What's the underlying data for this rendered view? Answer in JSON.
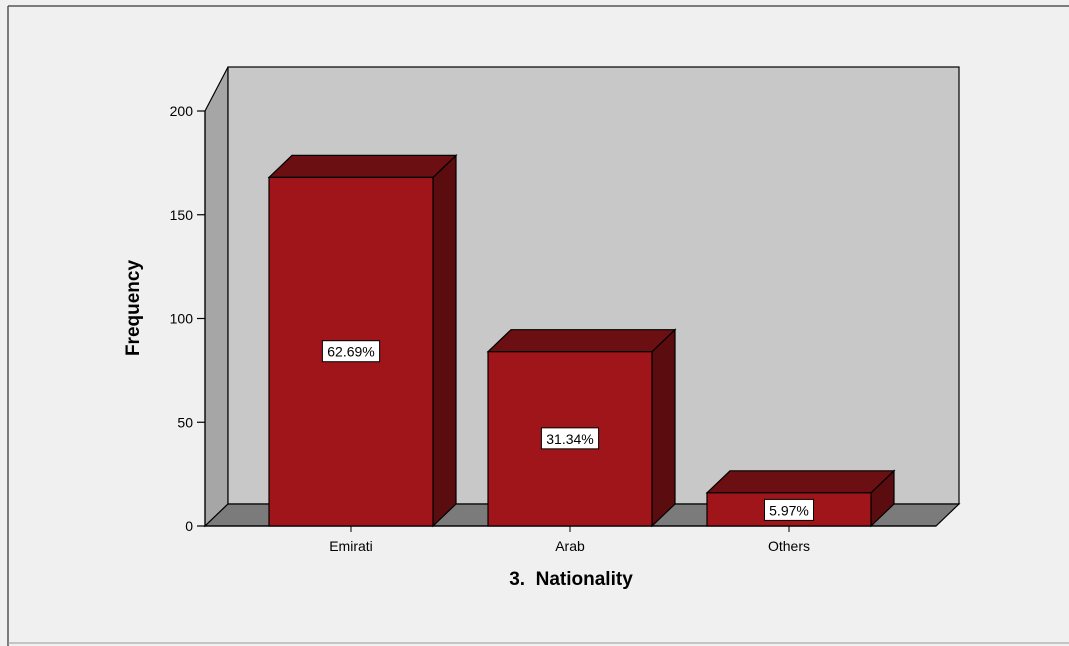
{
  "chart_data": {
    "type": "bar",
    "title": "",
    "xlabel": "3.  Nationality",
    "ylabel": "Frequency",
    "categories": [
      "Emirati",
      "Arab",
      "Others"
    ],
    "values": [
      168,
      84,
      16
    ],
    "data_labels": [
      "62.69%",
      "31.34%",
      "5.97%"
    ],
    "ylim": [
      0,
      200
    ],
    "yticks": [
      0,
      50,
      100,
      150,
      200
    ],
    "grid": false,
    "style": "3d",
    "colors": {
      "bar_front": "#a0151a",
      "bar_top": "#6b0f12",
      "bar_side": "#5a0c0f",
      "back_wall": "#c8c8c8",
      "side_wall": "#a6a6a6",
      "floor": "#7b7b7b",
      "page_background": "#f0f0f0"
    }
  }
}
